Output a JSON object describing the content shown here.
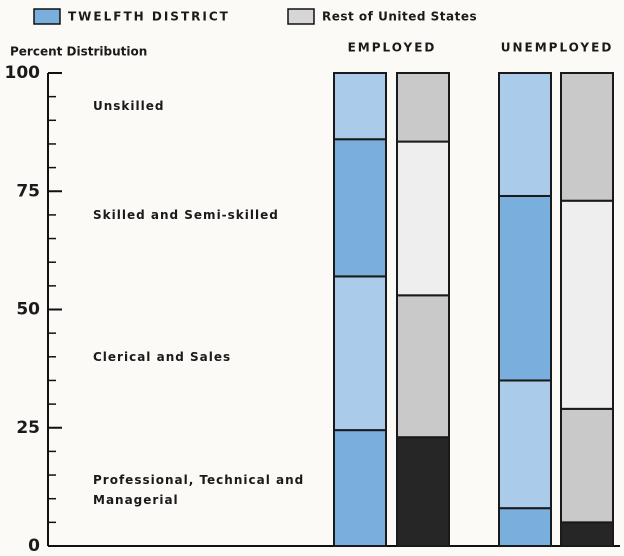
{
  "chart_data": {
    "type": "stacked_bar",
    "y_label": "Percent Distribution",
    "groups": [
      "EMPLOYED",
      "UNEMPLOYED"
    ],
    "segments": [
      "Professional, Technical and Managerial",
      "Clerical and Sales",
      "Skilled and Semi-skilled",
      "Unskilled"
    ],
    "series": [
      {
        "name": "TWELFTH DISTRICT",
        "color": "#7aaedc",
        "segment_colors": [
          "#7aaedc",
          "#aacbe9",
          "#7aaedc",
          "#aacbe9"
        ],
        "values": [
          [
            24.5,
            32.5,
            29,
            14
          ],
          [
            8,
            27,
            39,
            26
          ]
        ]
      },
      {
        "name": "Rest of United States",
        "color": "#d6d6d6",
        "segment_colors": [
          "#262626",
          "#c9c9c9",
          "#eeeeee",
          "#c9c9c9"
        ],
        "values": [
          [
            23,
            30,
            32.5,
            14.5
          ],
          [
            5,
            24,
            44,
            27
          ]
        ]
      }
    ],
    "ylim": [
      0,
      100
    ],
    "yticks": [
      0,
      25,
      50,
      75,
      100
    ],
    "yticks_minor": [
      5,
      10,
      15,
      20,
      30,
      35,
      40,
      45,
      55,
      60,
      65,
      70,
      80,
      85,
      90,
      95
    ]
  }
}
